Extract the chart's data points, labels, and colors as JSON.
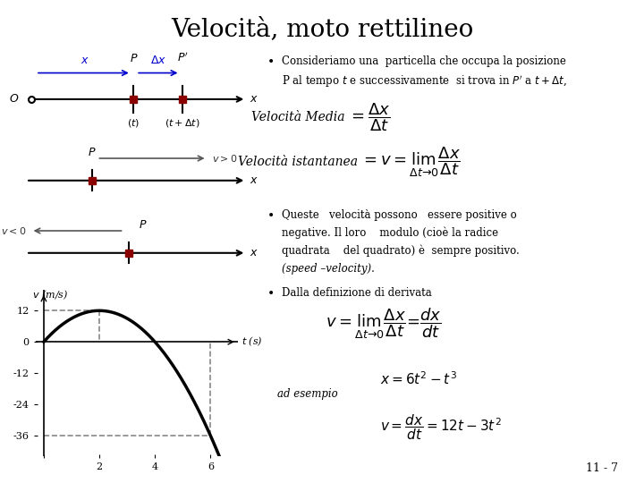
{
  "title": "Velocità, moto rettilineo",
  "title_fontsize": 20,
  "background_color": "#ffffff",
  "page_number": "11 - 7",
  "bullet1_line1": "Consideriamo una  particella che occupa la posizione",
  "bullet2_line1": "Queste   velocità possono   essere positive o",
  "bullet2_line2": "negative. Il loro    modulo (cioè la radice",
  "bullet2_line3": "quadrata    del quadrato) è  sempre positivo.",
  "bullet2_line4": "(speed –velocity).",
  "bullet3": "Dalla definizione di derivata",
  "ad_esempio": "ad esempio",
  "graph_yticks": [
    -36,
    -24,
    -12,
    0,
    12
  ],
  "graph_xticks": [
    0,
    2,
    4,
    6
  ],
  "graph_curve_color": "#000000",
  "graph_dashed_color": "#888888",
  "diag_arrow_color": "#0000cc",
  "diag_point_color": "#8b0000"
}
